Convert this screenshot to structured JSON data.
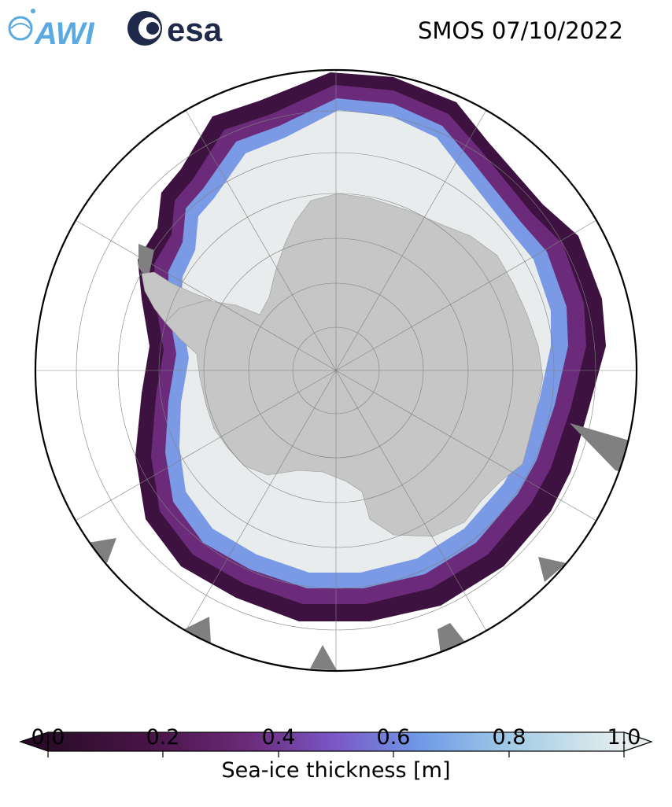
{
  "title": "SMOS 07/10/2022",
  "logos": [
    {
      "name": "AWI",
      "text": "AWI",
      "color": "#5aa9e0"
    },
    {
      "name": "esa",
      "text": "esa",
      "color": "#1f2a4a"
    }
  ],
  "map": {
    "projection": "south-polar-stereographic",
    "land_color": "#c6c6c6",
    "open_water_color": "#ffffff",
    "no_data_color": "#808080",
    "graticule": "dashed-gray"
  },
  "colorbar": {
    "label": "Sea-ice thickness [m]",
    "ticks": [
      "0.0",
      "0.2",
      "0.4",
      "0.6",
      "0.8",
      "1.0"
    ],
    "range": [
      0.0,
      1.0
    ],
    "extend": "both",
    "colormap": [
      "#2a0c2a",
      "#4a1548",
      "#6b2b7a",
      "#7a58c8",
      "#6f9be6",
      "#a8cfe6",
      "#e6eeee"
    ]
  }
}
